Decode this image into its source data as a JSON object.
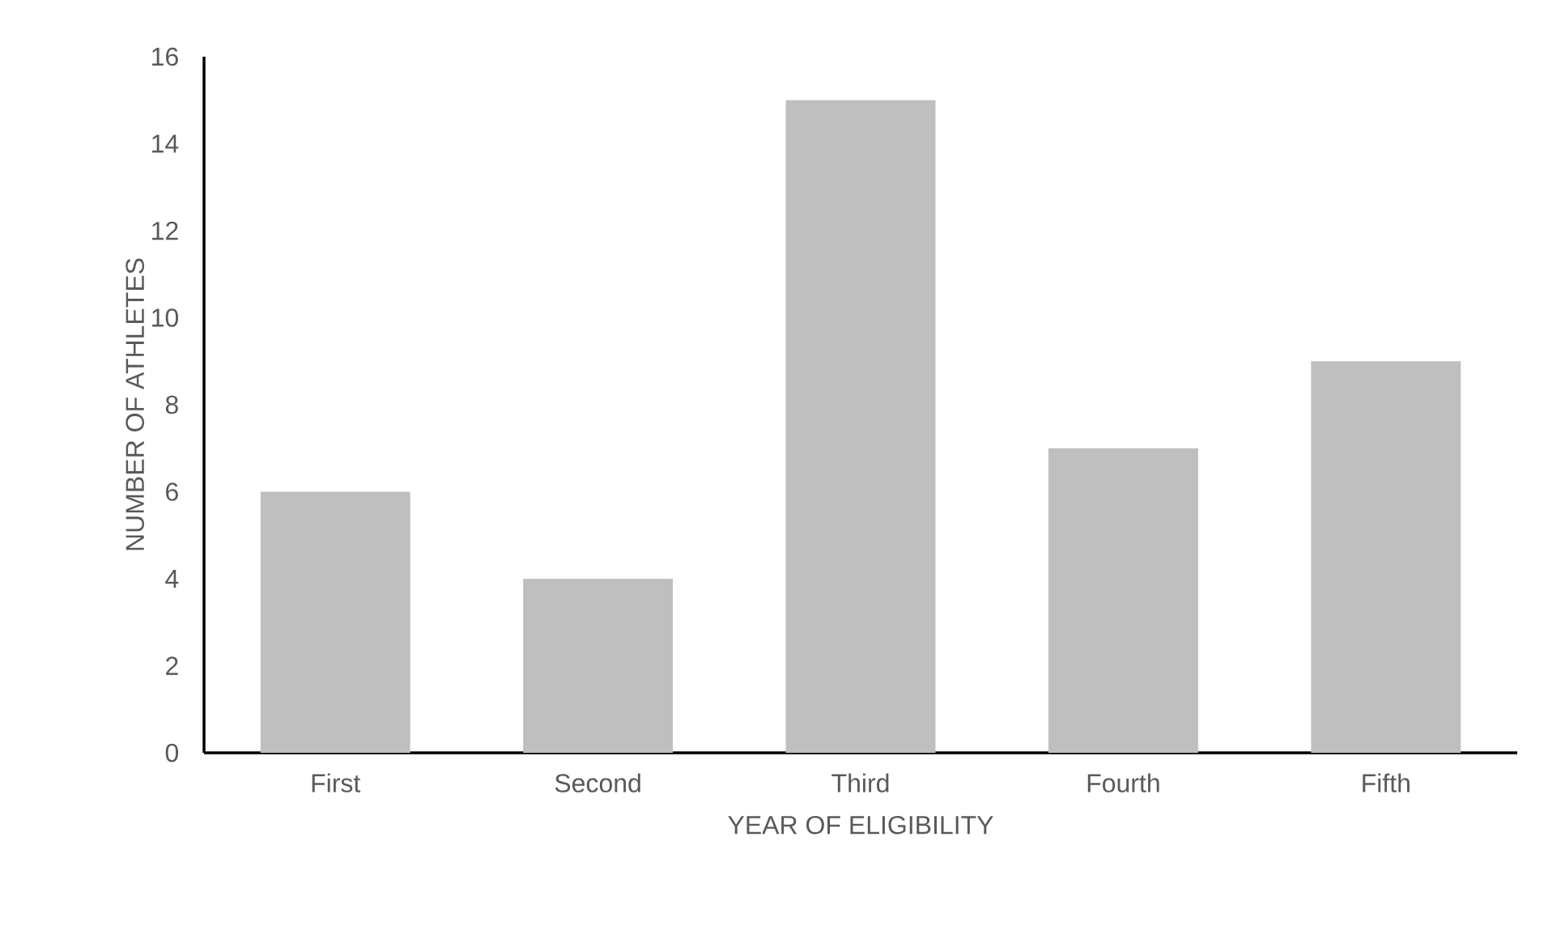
{
  "chart_data": {
    "type": "bar",
    "xlabel": "YEAR OF ELIGIBILITY",
    "ylabel": "NUMBER OF ATHLETES",
    "categories": [
      "First",
      "Second",
      "Third",
      "Fourth",
      "Fifth"
    ],
    "values": [
      6,
      4,
      15,
      7,
      9
    ],
    "color": "#bfbfbf",
    "ylim": [
      0,
      16
    ],
    "yticks": [
      0,
      2,
      4,
      6,
      8,
      10,
      12,
      14,
      16
    ],
    "grid": false
  }
}
